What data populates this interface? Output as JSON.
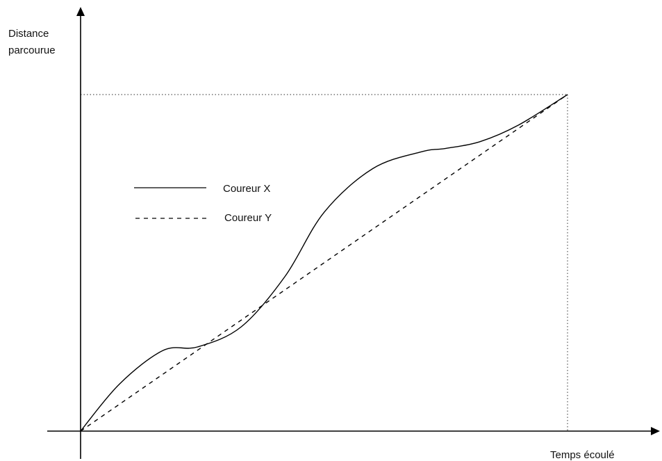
{
  "chart_data": {
    "type": "line",
    "title": "",
    "ylabel_lines": [
      "Distance",
      "parcourue"
    ],
    "xlabel": "Temps écoulé",
    "xlim": [
      0,
      1
    ],
    "ylim": [
      0,
      1
    ],
    "grid": false,
    "legend_position": "upper-left",
    "reference_lines": [
      {
        "orientation": "horizontal",
        "style": "dotted",
        "value": 1
      },
      {
        "orientation": "vertical",
        "style": "dotted",
        "value": 1
      }
    ],
    "series": [
      {
        "name": "Coureur X",
        "style": "solid",
        "x": [
          0,
          0.08,
          0.17,
          0.24,
          0.33,
          0.42,
          0.5,
          0.6,
          0.7,
          0.75,
          0.82,
          0.9,
          1
        ],
        "y": [
          0,
          0.14,
          0.24,
          0.25,
          0.31,
          0.46,
          0.65,
          0.78,
          0.83,
          0.84,
          0.86,
          0.91,
          1
        ]
      },
      {
        "name": "Coureur Y",
        "style": "dashed",
        "x": [
          0,
          1
        ],
        "y": [
          0,
          1
        ]
      }
    ]
  }
}
